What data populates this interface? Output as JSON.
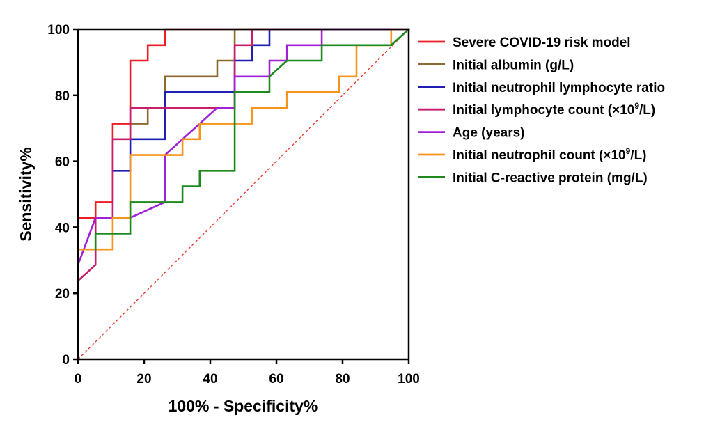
{
  "chart_data": {
    "type": "line",
    "title": "",
    "xlabel": "100% - Specificity%",
    "ylabel": "Sensitivity%",
    "xlim": [
      0,
      100
    ],
    "ylim": [
      0,
      100
    ],
    "xticks": [
      0,
      20,
      40,
      60,
      80,
      100
    ],
    "yticks": [
      0,
      20,
      40,
      60,
      80,
      100
    ],
    "xtick_labels": [
      "0",
      "20",
      "40",
      "60",
      "80",
      "100"
    ],
    "ytick_labels": [
      "0",
      "20",
      "40",
      "60",
      "80",
      "100"
    ],
    "legend_position": "right",
    "reference_line": {
      "name": "chance-diagonal",
      "color": "#e8392b",
      "style": "dashed",
      "x": [
        0,
        100
      ],
      "y": [
        0,
        100
      ]
    },
    "series": [
      {
        "name": "Severe COVID-19 risk model",
        "label_parts": [
          "Severe COVID-19 risk model"
        ],
        "color": "#ee1c25",
        "x": [
          0,
          0,
          0,
          5.3,
          5.3,
          10.5,
          10.5,
          15.8,
          15.8,
          21.1,
          21.1,
          26.3,
          26.3,
          100
        ],
        "y": [
          0,
          33.3,
          42.9,
          42.9,
          47.6,
          47.6,
          71.4,
          71.4,
          90.5,
          90.5,
          95.2,
          95.2,
          100,
          100
        ]
      },
      {
        "name": "Initial albumin (g/L)",
        "label_parts": [
          "Initial albumin (g/L)"
        ],
        "color": "#8c6a2f",
        "x": [
          15.8,
          15.8,
          21.1,
          21.1,
          26.3,
          26.3,
          42.1,
          42.1,
          47.4,
          47.4,
          100
        ],
        "y": [
          66.7,
          71.4,
          71.4,
          76.2,
          76.2,
          85.7,
          85.7,
          90.5,
          90.5,
          100,
          100
        ]
      },
      {
        "name": "Initial neutrophil lymphocyte ratio",
        "label_parts": [
          "Initial neutrophil lymphocyte ratio"
        ],
        "color": "#1f1fb4",
        "x": [
          10.5,
          15.8,
          15.8,
          26.3,
          26.3,
          47.4,
          47.4,
          52.6,
          52.6,
          57.9,
          57.9,
          100
        ],
        "y": [
          57.1,
          57.1,
          66.7,
          66.7,
          81.0,
          81.0,
          90.5,
          90.5,
          95.2,
          95.2,
          100,
          100
        ]
      },
      {
        "name": "Initial lymphocyte count (×10⁹/L)",
        "label_parts": [
          "Initial lymphocyte count (×10",
          "9",
          "/L)"
        ],
        "color": "#c71d6b",
        "x": [
          0,
          0,
          5.3,
          5.3,
          10.5,
          10.5,
          15.8,
          15.8,
          47.4,
          47.4,
          52.6,
          52.6,
          100
        ],
        "y": [
          0,
          23.8,
          28.6,
          42.9,
          42.9,
          66.7,
          66.7,
          76.2,
          76.2,
          95.2,
          95.2,
          100,
          100
        ]
      },
      {
        "name": "Age (years)",
        "label_parts": [
          "Age (years)"
        ],
        "color": "#a020d8",
        "x": [
          0,
          0,
          5.3,
          15.8,
          26.3,
          26.3,
          31.6,
          36.8,
          42.1,
          47.4,
          47.4,
          57.9,
          57.9,
          63.2,
          63.2,
          73.7,
          73.7,
          100
        ],
        "y": [
          0,
          28.6,
          42.9,
          42.9,
          47.6,
          61.9,
          66.7,
          71.4,
          76.2,
          76.2,
          85.7,
          85.7,
          90.5,
          90.5,
          95.2,
          95.2,
          100,
          100
        ]
      },
      {
        "name": "Initial neutrophil count (×10⁹/L)",
        "label_parts": [
          "Initial neutrophil count (×10",
          "9",
          "/L)"
        ],
        "color": "#f7941d",
        "x": [
          0,
          0,
          10.5,
          10.5,
          15.8,
          15.8,
          31.6,
          31.6,
          36.8,
          36.8,
          52.6,
          52.6,
          63.2,
          63.2,
          78.9,
          78.9,
          84.2,
          84.2,
          94.7,
          94.7,
          100
        ],
        "y": [
          0,
          33.3,
          33.3,
          42.9,
          42.9,
          61.9,
          61.9,
          66.7,
          66.7,
          71.4,
          71.4,
          76.2,
          76.2,
          81.0,
          81.0,
          85.7,
          85.7,
          95.2,
          95.2,
          100,
          100
        ]
      },
      {
        "name": "Initial C-reactive protein (mg/L)",
        "label_parts": [
          "Initial C-reactive protein (mg/L)"
        ],
        "color": "#1e8a1e",
        "x": [
          5.3,
          5.3,
          10.5,
          10.5,
          15.8,
          15.8,
          26.3,
          31.6,
          31.6,
          36.8,
          36.8,
          47.4,
          47.4,
          57.9,
          57.9,
          63.2,
          73.7,
          73.7,
          94.7,
          100
        ],
        "y": [
          33.3,
          38.1,
          38.1,
          38.1,
          38.1,
          47.6,
          47.6,
          47.6,
          52.4,
          52.4,
          57.1,
          57.1,
          81.0,
          81.0,
          85.7,
          90.5,
          90.5,
          95.2,
          95.2,
          100
        ]
      }
    ]
  }
}
